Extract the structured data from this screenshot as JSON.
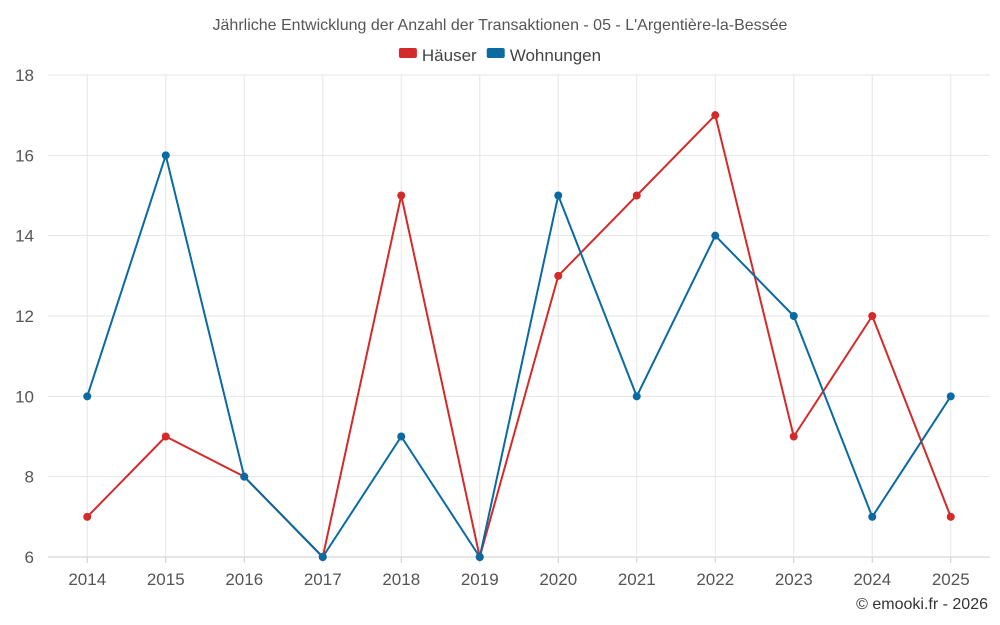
{
  "chart_data": {
    "type": "line",
    "title": "Jährliche Entwicklung der Anzahl der Transaktionen - 05 - L'Argentière-la-Bessée",
    "xlabel": "",
    "ylabel": "",
    "categories": [
      "2014",
      "2015",
      "2016",
      "2017",
      "2018",
      "2019",
      "2020",
      "2021",
      "2022",
      "2023",
      "2024",
      "2025"
    ],
    "ylim": [
      6,
      18
    ],
    "yticks": [
      6,
      8,
      10,
      12,
      14,
      16,
      18
    ],
    "grid": true,
    "legend_position": "top-center",
    "series": [
      {
        "name": "Häuser",
        "color": "#d42a2a",
        "values": [
          7,
          9,
          8,
          6,
          15,
          6,
          13,
          15,
          17,
          9,
          12,
          7
        ]
      },
      {
        "name": "Wohnungen",
        "color": "#0a6aa1",
        "values": [
          10,
          16,
          8,
          6,
          9,
          6,
          15,
          10,
          14,
          12,
          7,
          10
        ]
      }
    ]
  },
  "credit": "© emooki.fr - 2026"
}
